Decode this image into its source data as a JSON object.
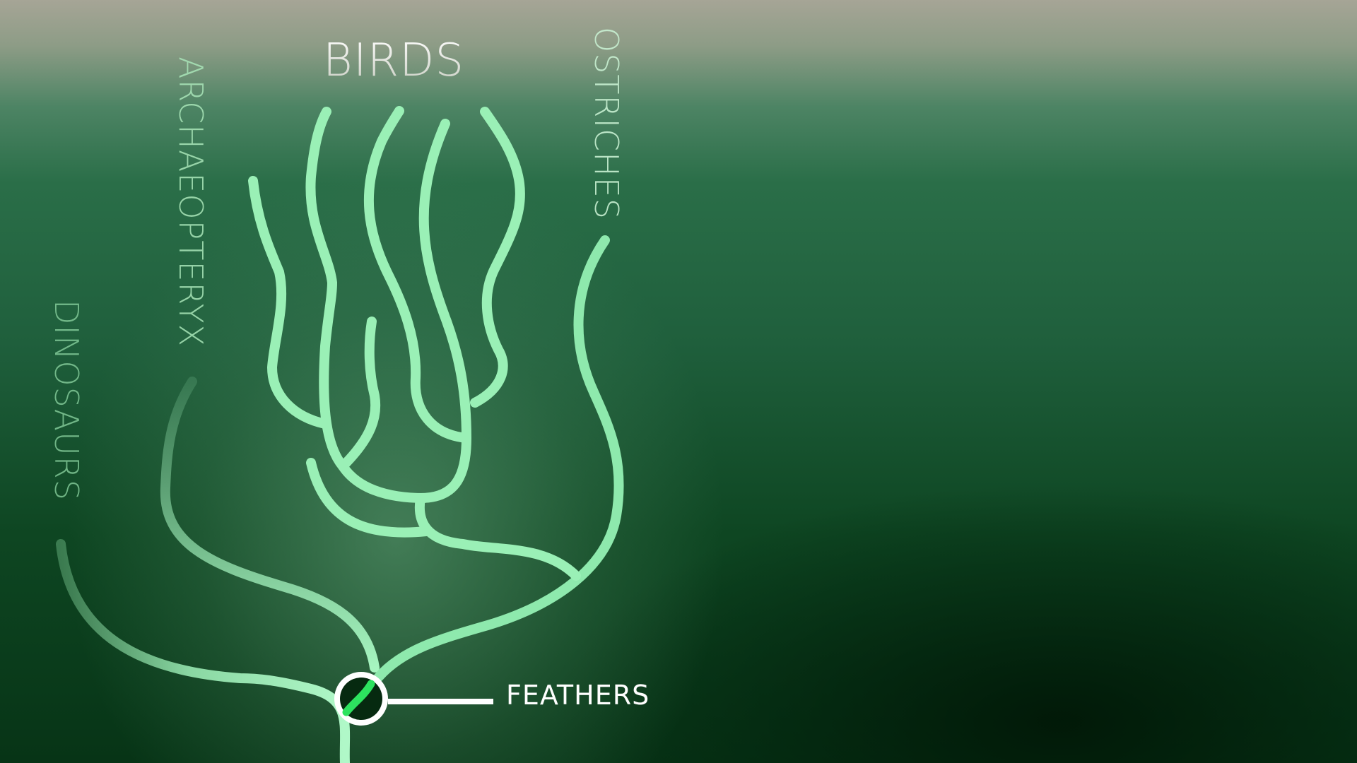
{
  "diagram": {
    "labels": {
      "birds": "BIRDS",
      "archaeopteryx": "ARCHAEOPTERYX",
      "ostriches": "OSTRICHES",
      "dinosaurs": "DINOSAURS",
      "feathers": "FEATHERS"
    },
    "colors": {
      "branch_light": "#a8f5c4",
      "branch_bright": "#5ef08f",
      "marker_ring": "#ffffff",
      "marker_fill": "#062a10",
      "marker_check": "#2de35f"
    }
  }
}
